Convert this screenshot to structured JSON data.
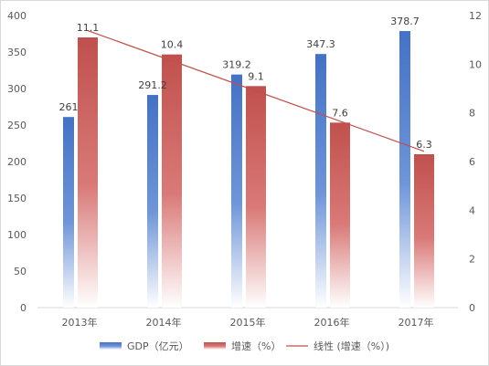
{
  "chart_data": {
    "type": "bar",
    "title": "",
    "categories": [
      "2013年",
      "2014年",
      "2015年",
      "2016年",
      "2017年"
    ],
    "series": [
      {
        "name": "GDP（亿元）",
        "axis": "left",
        "values": [
          261,
          291.2,
          319.2,
          347.3,
          378.7
        ],
        "labels": [
          "261",
          "291.2",
          "319.2",
          "347.3",
          "378.7"
        ],
        "color": "#4472c4"
      },
      {
        "name": "增速（%）",
        "axis": "right",
        "values": [
          11.1,
          10.4,
          9.1,
          7.6,
          6.3
        ],
        "labels": [
          "11.1",
          "10.4",
          "9.1",
          "7.6",
          "6.3"
        ],
        "color": "#c0504d"
      }
    ],
    "trendline": {
      "name": "线性 (增速（%）)",
      "of": "增速（%）",
      "type": "linear",
      "color": "#c0504d"
    },
    "y_left": {
      "min": 0,
      "max": 400,
      "ticks": [
        "0",
        "50",
        "100",
        "150",
        "200",
        "250",
        "300",
        "350",
        "400"
      ]
    },
    "y_right": {
      "min": 0,
      "max": 12,
      "ticks": [
        "0",
        "2",
        "4",
        "6",
        "8",
        "10",
        "12"
      ]
    },
    "grid": false,
    "legend_position": "bottom",
    "bar_fill": "vertical gradient fading to white at base"
  }
}
